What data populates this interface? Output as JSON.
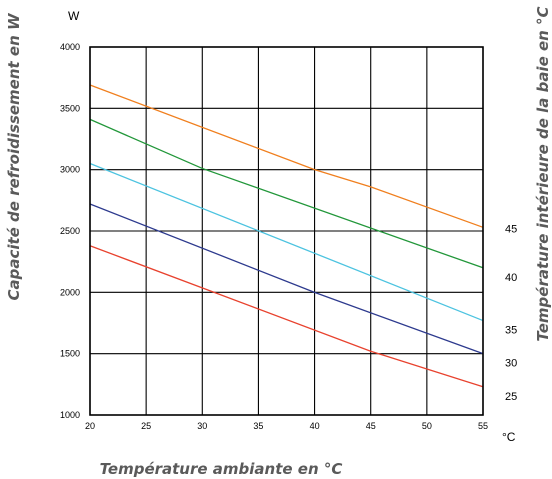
{
  "chart_data": {
    "type": "line",
    "ylabel": "Capacité de refroidissement en W",
    "y_unit": "W",
    "xlabel": "Température ambiante en °C",
    "x_unit": "°C",
    "right_label": "Température intérieure de la baie en °C",
    "xlim": [
      20,
      55
    ],
    "ylim": [
      1000,
      4000
    ],
    "x_ticks": [
      "20",
      "25",
      "30",
      "35",
      "40",
      "45",
      "50",
      "55"
    ],
    "y_ticks": [
      "1000",
      "1500",
      "2000",
      "2500",
      "3000",
      "3500",
      "4000"
    ],
    "grid": true,
    "series": [
      {
        "name": "45",
        "color": "#f07f1e",
        "points": [
          [
            20,
            3690
          ],
          [
            40,
            3000
          ],
          [
            45,
            2860
          ],
          [
            55,
            2530
          ]
        ]
      },
      {
        "name": "40",
        "color": "#22973a",
        "points": [
          [
            20,
            3410
          ],
          [
            30,
            3010
          ],
          [
            55,
            2200
          ]
        ]
      },
      {
        "name": "35",
        "color": "#4cc3e0",
        "points": [
          [
            20,
            3050
          ],
          [
            55,
            1770
          ]
        ]
      },
      {
        "name": "30",
        "color": "#2d3a8e",
        "points": [
          [
            20,
            2720
          ],
          [
            40,
            2000
          ],
          [
            55,
            1500
          ]
        ]
      },
      {
        "name": "25",
        "color": "#e8422e",
        "points": [
          [
            20,
            2380
          ],
          [
            45,
            1520
          ],
          [
            55,
            1230
          ]
        ]
      }
    ]
  }
}
